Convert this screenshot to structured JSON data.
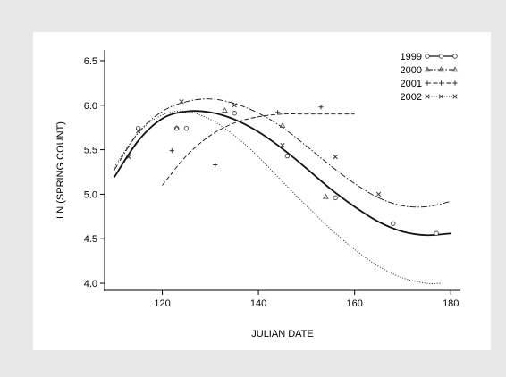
{
  "chart_data": {
    "type": "scatter",
    "title": "",
    "xlabel": "JULIAN DATE",
    "ylabel": "LN (SPRING COUNT)",
    "xlim": [
      108,
      182
    ],
    "ylim": [
      3.92,
      6.62
    ],
    "xticks": [
      120,
      140,
      160,
      180
    ],
    "yticks": [
      4.0,
      4.5,
      5.0,
      5.5,
      6.0,
      6.5
    ],
    "ytick_labels": [
      "4.0",
      "4.5",
      "5.0",
      "5.5",
      "6.0",
      "6.5"
    ],
    "grid": false,
    "legend": "top-right",
    "series": [
      {
        "name": "1999",
        "marker": "circle",
        "line": "solid",
        "points": [
          [
            115,
            5.74
          ],
          [
            123,
            5.74
          ],
          [
            125,
            5.74
          ],
          [
            135,
            5.91
          ],
          [
            146,
            5.43
          ],
          [
            156,
            4.96
          ],
          [
            168,
            4.67
          ],
          [
            177,
            4.56
          ]
        ],
        "curve": [
          [
            110,
            5.19
          ],
          [
            115,
            5.6
          ],
          [
            120,
            5.85
          ],
          [
            125,
            5.93
          ],
          [
            130,
            5.92
          ],
          [
            135,
            5.84
          ],
          [
            140,
            5.7
          ],
          [
            145,
            5.51
          ],
          [
            150,
            5.29
          ],
          [
            155,
            5.06
          ],
          [
            160,
            4.86
          ],
          [
            165,
            4.69
          ],
          [
            170,
            4.58
          ],
          [
            175,
            4.54
          ],
          [
            180,
            4.56
          ]
        ]
      },
      {
        "name": "2000",
        "marker": "triangle",
        "line": "dashdot",
        "points": [
          [
            123,
            5.74
          ],
          [
            133,
            5.94
          ],
          [
            145,
            5.77
          ],
          [
            154,
            4.97
          ]
        ],
        "curve": [
          [
            110,
            5.27
          ],
          [
            115,
            5.69
          ],
          [
            120,
            5.93
          ],
          [
            125,
            6.04
          ],
          [
            130,
            6.07
          ],
          [
            135,
            6.02
          ],
          [
            140,
            5.91
          ],
          [
            145,
            5.75
          ],
          [
            150,
            5.54
          ],
          [
            155,
            5.32
          ],
          [
            160,
            5.12
          ],
          [
            165,
            4.96
          ],
          [
            170,
            4.87
          ],
          [
            175,
            4.86
          ],
          [
            180,
            4.92
          ]
        ]
      },
      {
        "name": "2001",
        "marker": "plus",
        "line": "dashed",
        "points": [
          [
            122,
            5.49
          ],
          [
            131,
            5.33
          ],
          [
            144,
            5.92
          ],
          [
            153,
            5.98
          ]
        ],
        "curve": [
          [
            120,
            5.1
          ],
          [
            125,
            5.43
          ],
          [
            130,
            5.66
          ],
          [
            135,
            5.8
          ],
          [
            140,
            5.87
          ],
          [
            145,
            5.9
          ],
          [
            150,
            5.9
          ],
          [
            155,
            5.9
          ],
          [
            160,
            5.9
          ]
        ]
      },
      {
        "name": "2002",
        "marker": "x",
        "line": "dotted",
        "points": [
          [
            113,
            5.42
          ],
          [
            115,
            5.71
          ],
          [
            124,
            6.04
          ],
          [
            135,
            6.0
          ],
          [
            145,
            5.55
          ],
          [
            156,
            5.42
          ],
          [
            165,
            5.0
          ]
        ],
        "curve": [
          [
            110,
            5.3
          ],
          [
            115,
            5.69
          ],
          [
            120,
            5.89
          ],
          [
            125,
            5.93
          ],
          [
            130,
            5.84
          ],
          [
            135,
            5.66
          ],
          [
            140,
            5.42
          ],
          [
            145,
            5.14
          ],
          [
            150,
            4.87
          ],
          [
            155,
            4.61
          ],
          [
            160,
            4.38
          ],
          [
            165,
            4.19
          ],
          [
            170,
            4.06
          ],
          [
            175,
            4.0
          ],
          [
            178,
            4.0
          ]
        ]
      }
    ]
  }
}
